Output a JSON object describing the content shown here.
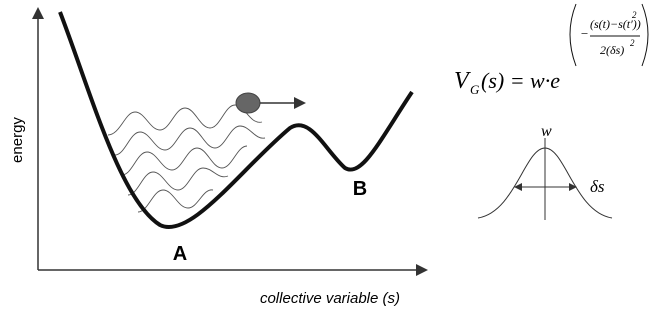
{
  "axes": {
    "y_label": "energy",
    "x_label": "collective variable (s)"
  },
  "minima": {
    "a": "A",
    "b": "B"
  },
  "formula": {
    "lhs": "V",
    "lhs_sub": "G",
    "rhs": "(s) = w·e",
    "minus": "−",
    "numerator": "(s(t)−s(t′))",
    "numerator_power": "2",
    "denominator": "2(δs)",
    "denominator_power": "2"
  },
  "gaussian": {
    "height": "w",
    "width": "δs"
  }
}
